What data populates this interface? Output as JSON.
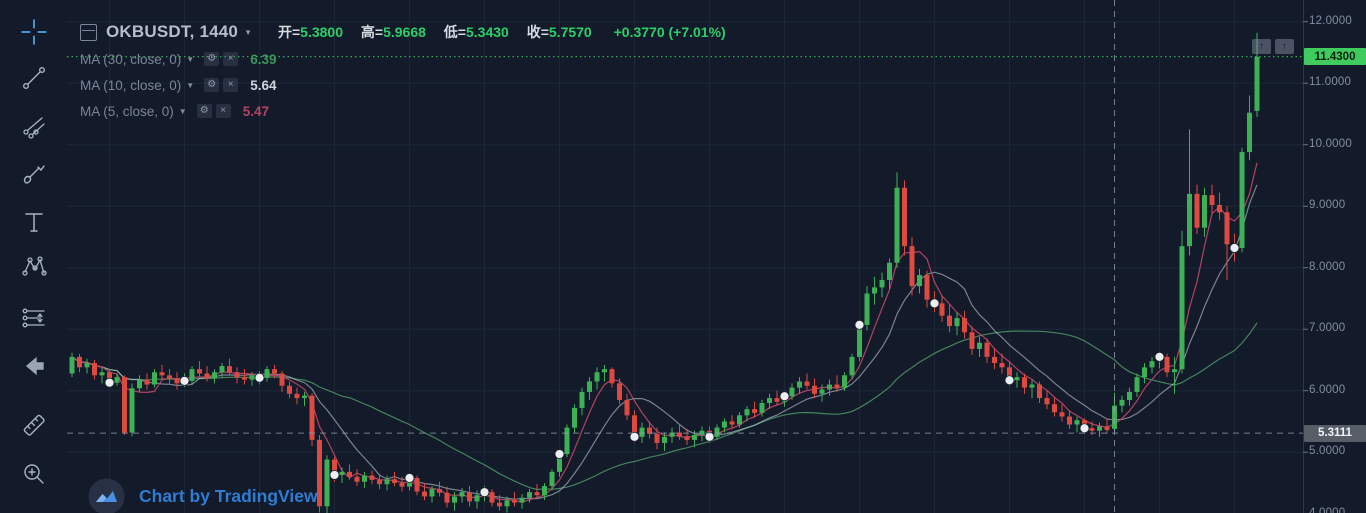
{
  "header": {
    "symbol": "OKBUSDT",
    "interval": "1440",
    "caret_glyph": "▼",
    "ohlc": {
      "open_label": "开",
      "open": "5.3800",
      "high_label": "高",
      "high": "5.9668",
      "low_label": "低",
      "low": "5.3430",
      "close_label": "收",
      "close": "5.7570",
      "change": "+0.3770 (+7.01%)"
    }
  },
  "indicators": [
    {
      "label": "MA (30, close, 0)",
      "value": "6.39",
      "color": "#3fa060",
      "gear_glyph": "⚙",
      "close_glyph": "×"
    },
    {
      "label": "MA (10, close, 0)",
      "value": "5.64",
      "color": "#dfe3ea",
      "gear_glyph": "⚙",
      "close_glyph": "×"
    },
    {
      "label": "MA (5, close, 0)",
      "value": "5.47",
      "color": "#c14866",
      "gear_glyph": "⚙",
      "close_glyph": "×"
    }
  ],
  "toolbar_tools": [
    "crosshair-tool",
    "trend-line-tool",
    "gann-fibonacci-tool",
    "brush-tool",
    "text-tool",
    "xabcd-pattern-tool",
    "forecast-tool",
    "back-arrow-tool",
    "measure-tool",
    "zoom-in-tool"
  ],
  "price_axis": {
    "ticks": [
      "12.0000",
      "11.0000",
      "10.0000",
      "9.0000",
      "8.0000",
      "7.0000",
      "6.0000",
      "5.0000",
      "4.0000"
    ],
    "last_price_label": "11.4300",
    "crosshair_price_label": "5.3111",
    "scroll_button_glyph": "↑"
  },
  "watermark": {
    "text": "Chart by TradingView"
  },
  "chart_data": {
    "type": "candlestick",
    "symbol": "OKBUSDT",
    "interval_minutes": 1440,
    "ylim": [
      4.0,
      12.2
    ],
    "y_ticks": [
      12,
      11,
      10,
      9,
      8,
      7,
      6,
      5,
      4
    ],
    "grid": true,
    "up_color": "#3eb157",
    "down_color": "#dc4a41",
    "grid_color": "#1d2637",
    "marker_color": "#eceef1",
    "crosshair_color": "#98a1ad",
    "last_price": 11.43,
    "last_price_color": "#3fd264",
    "crosshair": {
      "price": 5.3111,
      "bar_index": 139
    },
    "marker_indices": [
      5,
      15,
      25,
      35,
      45,
      55,
      65,
      75,
      85,
      95,
      105,
      115,
      125,
      135,
      145,
      155
    ],
    "moving_averages": [
      {
        "period": 30,
        "color": "#4a8f63",
        "opacity": 0.9
      },
      {
        "period": 10,
        "color": "#cfd8e3",
        "opacity": 0.55
      },
      {
        "period": 5,
        "color": "#c14866",
        "opacity": 0.9
      }
    ],
    "candles": [
      [
        6.28,
        6.62,
        6.22,
        6.55
      ],
      [
        6.55,
        6.6,
        6.3,
        6.38
      ],
      [
        6.38,
        6.52,
        6.28,
        6.45
      ],
      [
        6.45,
        6.5,
        6.18,
        6.25
      ],
      [
        6.25,
        6.38,
        6.12,
        6.3
      ],
      [
        6.3,
        6.35,
        6.05,
        6.13
      ],
      [
        6.13,
        6.28,
        6.08,
        6.22
      ],
      [
        6.22,
        6.25,
        5.28,
        5.32
      ],
      [
        5.32,
        6.12,
        5.26,
        6.04
      ],
      [
        6.04,
        6.25,
        5.98,
        6.18
      ],
      [
        6.18,
        6.28,
        6.02,
        6.1
      ],
      [
        6.1,
        6.35,
        6.05,
        6.3
      ],
      [
        6.3,
        6.42,
        6.18,
        6.25
      ],
      [
        6.25,
        6.35,
        6.1,
        6.2
      ],
      [
        6.2,
        6.3,
        6.02,
        6.12
      ],
      [
        6.12,
        6.28,
        6.06,
        6.16
      ],
      [
        6.16,
        6.4,
        6.1,
        6.35
      ],
      [
        6.35,
        6.48,
        6.22,
        6.28
      ],
      [
        6.28,
        6.4,
        6.15,
        6.2
      ],
      [
        6.2,
        6.35,
        6.12,
        6.3
      ],
      [
        6.3,
        6.45,
        6.22,
        6.4
      ],
      [
        6.4,
        6.52,
        6.25,
        6.3
      ],
      [
        6.3,
        6.38,
        6.12,
        6.22
      ],
      [
        6.22,
        6.35,
        6.1,
        6.18
      ],
      [
        6.18,
        6.3,
        6.08,
        6.25
      ],
      [
        6.25,
        6.32,
        6.1,
        6.21
      ],
      [
        6.21,
        6.4,
        6.15,
        6.35
      ],
      [
        6.35,
        6.42,
        6.2,
        6.28
      ],
      [
        6.28,
        6.32,
        5.98,
        6.08
      ],
      [
        6.08,
        6.15,
        5.88,
        5.95
      ],
      [
        5.95,
        6.05,
        5.78,
        5.88
      ],
      [
        5.88,
        5.98,
        5.75,
        5.92
      ],
      [
        5.92,
        5.96,
        5.1,
        5.2
      ],
      [
        5.2,
        5.28,
        4.02,
        4.12
      ],
      [
        4.12,
        4.95,
        4.0,
        4.88
      ],
      [
        4.88,
        4.92,
        4.52,
        4.63
      ],
      [
        4.63,
        4.75,
        4.5,
        4.68
      ],
      [
        4.68,
        4.8,
        4.55,
        4.6
      ],
      [
        4.6,
        4.72,
        4.45,
        4.52
      ],
      [
        4.52,
        4.68,
        4.42,
        4.62
      ],
      [
        4.62,
        4.7,
        4.48,
        4.55
      ],
      [
        4.55,
        4.65,
        4.4,
        4.48
      ],
      [
        4.48,
        4.62,
        4.38,
        4.56
      ],
      [
        4.56,
        4.68,
        4.45,
        4.5
      ],
      [
        4.5,
        4.6,
        4.36,
        4.44
      ],
      [
        4.44,
        4.62,
        4.38,
        4.58
      ],
      [
        4.58,
        4.62,
        4.3,
        4.36
      ],
      [
        4.36,
        4.5,
        4.22,
        4.28
      ],
      [
        4.28,
        4.45,
        4.18,
        4.4
      ],
      [
        4.4,
        4.52,
        4.28,
        4.34
      ],
      [
        4.34,
        4.44,
        4.1,
        4.18
      ],
      [
        4.18,
        4.35,
        4.05,
        4.28
      ],
      [
        4.28,
        4.42,
        4.18,
        4.35
      ],
      [
        4.35,
        4.45,
        4.12,
        4.2
      ],
      [
        4.2,
        4.38,
        4.08,
        4.3
      ],
      [
        4.3,
        4.45,
        4.2,
        4.35
      ],
      [
        4.35,
        4.4,
        4.12,
        4.18
      ],
      [
        4.18,
        4.3,
        4.05,
        4.12
      ],
      [
        4.12,
        4.28,
        4.02,
        4.22
      ],
      [
        4.22,
        4.35,
        4.12,
        4.18
      ],
      [
        4.18,
        4.32,
        4.08,
        4.26
      ],
      [
        4.26,
        4.4,
        4.18,
        4.35
      ],
      [
        4.35,
        4.48,
        4.25,
        4.3
      ],
      [
        4.3,
        4.5,
        4.22,
        4.45
      ],
      [
        4.45,
        4.72,
        4.38,
        4.68
      ],
      [
        4.68,
        5.02,
        4.6,
        4.97
      ],
      [
        4.97,
        5.45,
        4.92,
        5.4
      ],
      [
        5.4,
        5.78,
        5.32,
        5.72
      ],
      [
        5.72,
        6.05,
        5.6,
        5.98
      ],
      [
        5.98,
        6.22,
        5.85,
        6.15
      ],
      [
        6.15,
        6.38,
        6.02,
        6.3
      ],
      [
        6.3,
        6.42,
        6.15,
        6.35
      ],
      [
        6.35,
        6.38,
        6.05,
        6.12
      ],
      [
        6.12,
        6.2,
        5.78,
        5.85
      ],
      [
        5.85,
        5.95,
        5.52,
        5.6
      ],
      [
        5.6,
        5.68,
        5.16,
        5.25
      ],
      [
        5.25,
        5.48,
        5.15,
        5.4
      ],
      [
        5.4,
        5.5,
        5.22,
        5.3
      ],
      [
        5.3,
        5.4,
        5.05,
        5.15
      ],
      [
        5.15,
        5.32,
        5.02,
        5.25
      ],
      [
        5.25,
        5.4,
        5.15,
        5.32
      ],
      [
        5.32,
        5.45,
        5.2,
        5.26
      ],
      [
        5.26,
        5.38,
        5.12,
        5.2
      ],
      [
        5.2,
        5.35,
        5.08,
        5.28
      ],
      [
        5.28,
        5.42,
        5.18,
        5.35
      ],
      [
        5.35,
        5.42,
        5.15,
        5.25
      ],
      [
        5.25,
        5.45,
        5.2,
        5.4
      ],
      [
        5.4,
        5.55,
        5.32,
        5.5
      ],
      [
        5.5,
        5.6,
        5.38,
        5.45
      ],
      [
        5.45,
        5.65,
        5.4,
        5.6
      ],
      [
        5.6,
        5.75,
        5.5,
        5.7
      ],
      [
        5.7,
        5.82,
        5.56,
        5.64
      ],
      [
        5.64,
        5.85,
        5.58,
        5.8
      ],
      [
        5.8,
        5.95,
        5.7,
        5.88
      ],
      [
        5.88,
        6.0,
        5.76,
        5.82
      ],
      [
        5.82,
        5.98,
        5.74,
        5.91
      ],
      [
        5.91,
        6.12,
        5.85,
        6.05
      ],
      [
        6.05,
        6.22,
        5.95,
        6.15
      ],
      [
        6.15,
        6.28,
        6.02,
        6.08
      ],
      [
        6.08,
        6.2,
        5.88,
        5.95
      ],
      [
        5.95,
        6.1,
        5.82,
        6.02
      ],
      [
        6.02,
        6.18,
        5.92,
        6.1
      ],
      [
        6.1,
        6.25,
        5.98,
        6.05
      ],
      [
        6.05,
        6.3,
        6.0,
        6.25
      ],
      [
        6.25,
        6.6,
        6.18,
        6.55
      ],
      [
        6.55,
        7.15,
        6.48,
        7.07
      ],
      [
        7.07,
        7.7,
        6.98,
        7.58
      ],
      [
        7.58,
        7.85,
        7.4,
        7.68
      ],
      [
        7.68,
        7.92,
        7.52,
        7.8
      ],
      [
        7.8,
        8.15,
        7.65,
        8.08
      ],
      [
        8.08,
        9.55,
        8.0,
        9.3
      ],
      [
        9.3,
        9.42,
        8.2,
        8.35
      ],
      [
        8.35,
        8.5,
        7.55,
        7.7
      ],
      [
        7.7,
        7.98,
        7.58,
        7.88
      ],
      [
        7.88,
        7.95,
        7.35,
        7.48
      ],
      [
        7.48,
        7.62,
        7.28,
        7.42
      ],
      [
        7.42,
        7.55,
        7.12,
        7.22
      ],
      [
        7.22,
        7.4,
        6.95,
        7.05
      ],
      [
        7.05,
        7.28,
        6.9,
        7.18
      ],
      [
        7.18,
        7.3,
        6.85,
        6.95
      ],
      [
        6.95,
        7.05,
        6.58,
        6.68
      ],
      [
        6.68,
        6.88,
        6.55,
        6.78
      ],
      [
        6.78,
        6.85,
        6.45,
        6.55
      ],
      [
        6.55,
        6.7,
        6.35,
        6.45
      ],
      [
        6.45,
        6.6,
        6.28,
        6.38
      ],
      [
        6.38,
        6.48,
        6.08,
        6.17
      ],
      [
        6.17,
        6.3,
        6.05,
        6.22
      ],
      [
        6.22,
        6.28,
        5.95,
        6.05
      ],
      [
        6.05,
        6.18,
        5.88,
        6.1
      ],
      [
        6.1,
        6.15,
        5.8,
        5.88
      ],
      [
        5.88,
        6.0,
        5.7,
        5.78
      ],
      [
        5.78,
        5.9,
        5.58,
        5.65
      ],
      [
        5.65,
        5.78,
        5.5,
        5.58
      ],
      [
        5.58,
        5.68,
        5.38,
        5.45
      ],
      [
        5.45,
        5.58,
        5.32,
        5.52
      ],
      [
        5.52,
        5.55,
        5.3,
        5.39
      ],
      [
        5.39,
        5.5,
        5.28,
        5.35
      ],
      [
        5.35,
        5.48,
        5.25,
        5.42
      ],
      [
        5.42,
        5.55,
        5.3,
        5.36
      ],
      [
        5.38,
        5.9668,
        5.343,
        5.757
      ],
      [
        5.757,
        5.92,
        5.65,
        5.85
      ],
      [
        5.85,
        6.05,
        5.76,
        5.98
      ],
      [
        5.98,
        6.28,
        5.9,
        6.22
      ],
      [
        6.22,
        6.45,
        6.12,
        6.38
      ],
      [
        6.38,
        6.55,
        6.28,
        6.48
      ],
      [
        6.48,
        6.62,
        6.36,
        6.55
      ],
      [
        6.55,
        6.6,
        6.22,
        6.3
      ],
      [
        6.3,
        6.55,
        5.95,
        6.35
      ],
      [
        6.35,
        8.6,
        6.28,
        8.35
      ],
      [
        8.35,
        10.25,
        8.2,
        9.2
      ],
      [
        9.2,
        9.35,
        8.55,
        8.65
      ],
      [
        8.65,
        9.3,
        8.5,
        9.18
      ],
      [
        9.18,
        9.35,
        8.88,
        9.02
      ],
      [
        9.02,
        9.22,
        8.78,
        8.9
      ],
      [
        8.9,
        9.0,
        7.8,
        8.38
      ],
      [
        8.38,
        8.55,
        8.1,
        8.32
      ],
      [
        8.32,
        9.95,
        8.25,
        9.88
      ],
      [
        9.88,
        10.8,
        9.75,
        10.52
      ],
      [
        10.55,
        11.82,
        10.45,
        11.43
      ]
    ]
  }
}
